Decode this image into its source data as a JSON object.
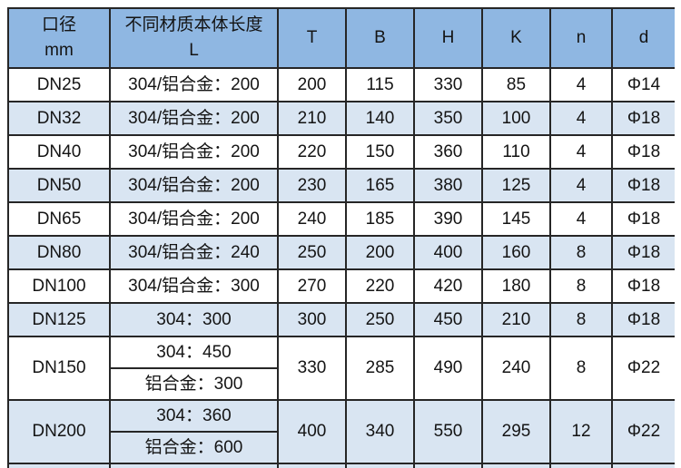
{
  "colors": {
    "header_bg": "#8FB7E2",
    "stripe_bg": "#D9E5F2",
    "row_bg": "#FFFFFF",
    "border": "#262626",
    "text": "#141414"
  },
  "table": {
    "columns": [
      {
        "id": "dn",
        "label_lines": [
          "口径",
          "mm"
        ]
      },
      {
        "id": "l",
        "label_lines": [
          "不同材质本体长度",
          "L"
        ]
      },
      {
        "id": "t",
        "label_lines": [
          "T"
        ]
      },
      {
        "id": "b",
        "label_lines": [
          "B"
        ]
      },
      {
        "id": "h",
        "label_lines": [
          "H"
        ]
      },
      {
        "id": "k",
        "label_lines": [
          "K"
        ]
      },
      {
        "id": "n",
        "label_lines": [
          "n"
        ]
      },
      {
        "id": "d",
        "label_lines": [
          "d"
        ]
      }
    ],
    "rows": [
      {
        "dn": "DN25",
        "l": [
          "304/铝合金：200"
        ],
        "t": "200",
        "b": "115",
        "h": "330",
        "k": "85",
        "n": "4",
        "d": "Φ14",
        "shaded": false
      },
      {
        "dn": "DN32",
        "l": [
          "304/铝合金：200"
        ],
        "t": "210",
        "b": "140",
        "h": "350",
        "k": "100",
        "n": "4",
        "d": "Φ18",
        "shaded": true
      },
      {
        "dn": "DN40",
        "l": [
          "304/铝合金：200"
        ],
        "t": "220",
        "b": "150",
        "h": "360",
        "k": "110",
        "n": "4",
        "d": "Φ18",
        "shaded": false
      },
      {
        "dn": "DN50",
        "l": [
          "304/铝合金：200"
        ],
        "t": "230",
        "b": "165",
        "h": "380",
        "k": "125",
        "n": "4",
        "d": "Φ18",
        "shaded": true
      },
      {
        "dn": "DN65",
        "l": [
          "304/铝合金：200"
        ],
        "t": "240",
        "b": "185",
        "h": "390",
        "k": "145",
        "n": "4",
        "d": "Φ18",
        "shaded": false
      },
      {
        "dn": "DN80",
        "l": [
          "304/铝合金：240"
        ],
        "t": "250",
        "b": "200",
        "h": "400",
        "k": "160",
        "n": "8",
        "d": "Φ18",
        "shaded": true
      },
      {
        "dn": "DN100",
        "l": [
          "304/铝合金：300"
        ],
        "t": "270",
        "b": "220",
        "h": "420",
        "k": "180",
        "n": "8",
        "d": "Φ18",
        "shaded": false
      },
      {
        "dn": "DN125",
        "l": [
          "304：300"
        ],
        "t": "300",
        "b": "250",
        "h": "450",
        "k": "210",
        "n": "8",
        "d": "Φ18",
        "shaded": true
      },
      {
        "dn": "DN150",
        "l": [
          "304：450",
          "铝合金：300"
        ],
        "t": "330",
        "b": "285",
        "h": "490",
        "k": "240",
        "n": "8",
        "d": "Φ22",
        "shaded": false
      },
      {
        "dn": "DN200",
        "l": [
          "304：360",
          "铝合金：600"
        ],
        "t": "400",
        "b": "340",
        "h": "550",
        "k": "295",
        "n": "12",
        "d": "Φ22",
        "shaded": true
      }
    ],
    "partial_bottom_row": {
      "shaded": true,
      "note": "next row cut off at image bottom edge"
    }
  }
}
